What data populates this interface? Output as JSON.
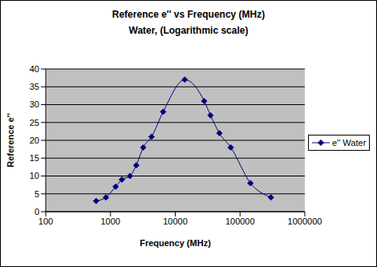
{
  "chart_data": {
    "type": "line",
    "title": "Reference e'' vs Frequency (MHz)",
    "subtitle": "Water, (Logarithmic scale)",
    "x_label": "Frequency (MHz)",
    "y_label": "Reference e''",
    "x": [
      600,
      850,
      1200,
      1500,
      2000,
      2500,
      3200,
      4300,
      6500,
      14000,
      28000,
      35000,
      48000,
      72000,
      145000,
      300000
    ],
    "series": [
      {
        "name": "e'' Water",
        "color": "#000080",
        "marker": "diamond",
        "values": [
          3,
          4,
          7,
          9,
          10,
          13,
          18,
          21,
          28,
          37,
          31,
          27,
          22,
          18,
          8,
          4
        ]
      }
    ],
    "xlim": [
      100,
      1000000
    ],
    "xticks": [
      100,
      1000,
      10000,
      100000,
      1000000
    ],
    "ylim": [
      0,
      40
    ],
    "yticks": [
      0,
      5,
      10,
      15,
      20,
      25,
      30,
      35,
      40
    ],
    "log": "x",
    "grid": true,
    "legend": "right"
  }
}
